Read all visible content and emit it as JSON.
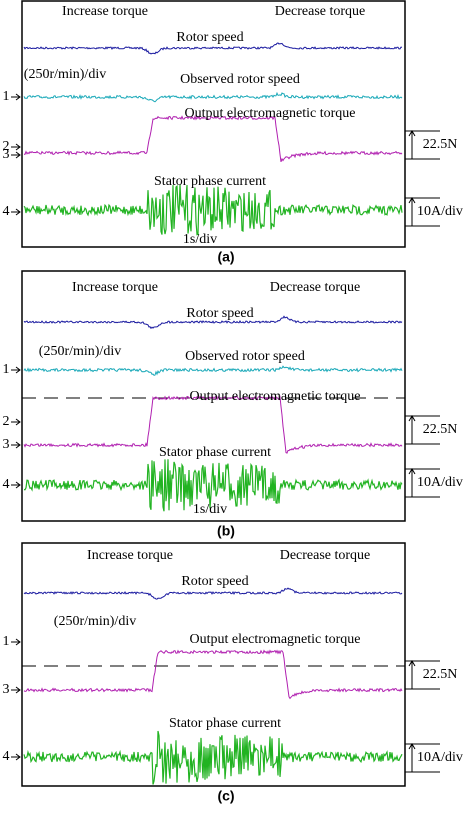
{
  "panels": [
    {
      "label": "(a)",
      "channels": [
        "1",
        "2",
        "3",
        "4"
      ],
      "texts": [
        "Increase torque",
        "Decrease torque",
        "Rotor speed",
        "(250r/min)/div",
        "Observed rotor speed",
        "Output electromagnetic torque",
        "22.5N",
        "Stator phase current",
        "10A/div",
        "1s/div"
      ]
    },
    {
      "label": "(b)",
      "channels": [
        "1",
        "2",
        "3",
        "4"
      ],
      "texts": [
        "Increase torque",
        "Decrease torque",
        "Rotor speed",
        "(250r/min)/div",
        "Observed rotor speed",
        "Output electromagnetic torque",
        "22.5N",
        "Stator phase current",
        "10A/div",
        "1s/div"
      ]
    },
    {
      "label": "(c)",
      "channels": [
        "1",
        "3",
        "4"
      ],
      "texts": [
        "Increase torque",
        "Decrease torque",
        "Rotor speed",
        "(250r/min)/div",
        "Output electromagnetic torque",
        "22.5N",
        "Stator phase current",
        "10A/div"
      ]
    }
  ]
}
